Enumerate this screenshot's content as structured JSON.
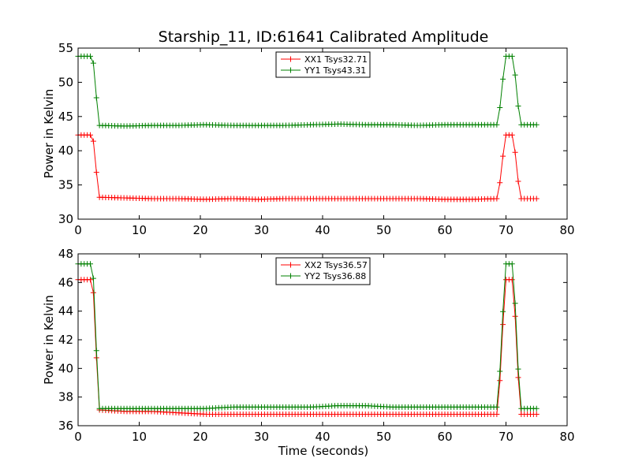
{
  "chart_data": [
    {
      "type": "line",
      "title": "Starship_11, ID:61641 Calibrated Amplitude",
      "xlabel": "",
      "ylabel": "Power in Kelvin",
      "xlim": [
        0,
        80
      ],
      "ylim": [
        30,
        55
      ],
      "x_ticks": [
        0,
        10,
        20,
        30,
        40,
        50,
        60,
        70,
        80
      ],
      "y_ticks": [
        30,
        35,
        40,
        45,
        50,
        55
      ],
      "grid": false,
      "legend_position": "top-center",
      "series": [
        {
          "name": "XX1 Tsys32.71",
          "color": "#ff0000",
          "profile": {
            "on_level": 42.3,
            "baseline": [
              33.2,
              33.1,
              33.0,
              33.0,
              32.9,
              33.0,
              32.9,
              33.0,
              33.0,
              33.0,
              33.0,
              33.0,
              33.0,
              32.9,
              32.9,
              33.0
            ],
            "end_level": 33.0,
            "on_end": 2.4,
            "drop_end": 3.4,
            "rise_start": 68.7,
            "on2_start": 69.9,
            "on2_end": 71.2,
            "drop2_end": 72.3
          }
        },
        {
          "name": "YY1 Tsys43.31",
          "color": "#008000",
          "profile": {
            "on_level": 53.8,
            "baseline": [
              43.7,
              43.6,
              43.7,
              43.7,
              43.8,
              43.7,
              43.7,
              43.7,
              43.8,
              43.9,
              43.8,
              43.8,
              43.7,
              43.8,
              43.8,
              43.8
            ],
            "end_level": 43.8,
            "on_end": 2.4,
            "drop_end": 3.4,
            "rise_start": 68.7,
            "on2_start": 69.9,
            "on2_end": 71.2,
            "drop2_end": 72.3
          }
        }
      ]
    },
    {
      "type": "line",
      "title": "",
      "xlabel": "Time (seconds)",
      "ylabel": "Power in Kelvin",
      "xlim": [
        0,
        80
      ],
      "ylim": [
        36,
        48
      ],
      "x_ticks": [
        0,
        10,
        20,
        30,
        40,
        50,
        60,
        70,
        80
      ],
      "y_ticks": [
        36,
        38,
        40,
        42,
        44,
        46,
        48
      ],
      "grid": false,
      "legend_position": "top-center",
      "series": [
        {
          "name": "XX2 Tsys36.57",
          "color": "#ff0000",
          "profile": {
            "on_level": 46.2,
            "baseline": [
              37.1,
              37.0,
              37.0,
              36.9,
              36.8,
              36.8,
              36.8,
              36.8,
              36.8,
              36.8,
              36.8,
              36.8,
              36.8,
              36.8,
              36.8,
              36.8
            ],
            "end_level": 36.8,
            "on_end": 2.4,
            "drop_end": 3.4,
            "rise_start": 68.7,
            "on2_start": 69.9,
            "on2_end": 71.2,
            "drop2_end": 72.3
          }
        },
        {
          "name": "YY2 Tsys36.88",
          "color": "#008000",
          "profile": {
            "on_level": 47.3,
            "baseline": [
              37.2,
              37.2,
              37.2,
              37.2,
              37.2,
              37.3,
              37.3,
              37.3,
              37.3,
              37.4,
              37.4,
              37.3,
              37.3,
              37.3,
              37.3,
              37.3
            ],
            "end_level": 37.2,
            "on_end": 2.4,
            "drop_end": 3.4,
            "rise_start": 68.7,
            "on2_start": 69.9,
            "on2_end": 71.2,
            "drop2_end": 72.3
          }
        }
      ]
    }
  ]
}
